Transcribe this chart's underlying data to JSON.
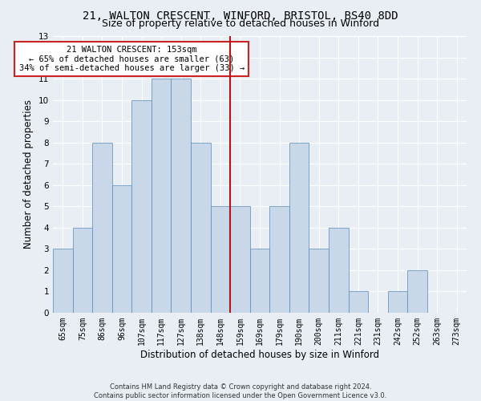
{
  "title_line1": "21, WALTON CRESCENT, WINFORD, BRISTOL, BS40 8DD",
  "title_line2": "Size of property relative to detached houses in Winford",
  "xlabel": "Distribution of detached houses by size in Winford",
  "ylabel": "Number of detached properties",
  "footnote1": "Contains HM Land Registry data © Crown copyright and database right 2024.",
  "footnote2": "Contains public sector information licensed under the Open Government Licence v3.0.",
  "bar_labels": [
    "65sqm",
    "75sqm",
    "86sqm",
    "96sqm",
    "107sqm",
    "117sqm",
    "127sqm",
    "138sqm",
    "148sqm",
    "159sqm",
    "169sqm",
    "179sqm",
    "190sqm",
    "200sqm",
    "211sqm",
    "221sqm",
    "231sqm",
    "242sqm",
    "252sqm",
    "263sqm",
    "273sqm"
  ],
  "bar_values": [
    3,
    4,
    8,
    6,
    10,
    11,
    11,
    8,
    5,
    5,
    3,
    5,
    8,
    3,
    4,
    1,
    0,
    1,
    2,
    0,
    0
  ],
  "bar_color": "#c8d8e8",
  "bar_edgecolor": "#5588bb",
  "vline_index": 8,
  "vline_color": "#bb1111",
  "annotation_text": "21 WALTON CRESCENT: 153sqm\n← 65% of detached houses are smaller (63)\n34% of semi-detached houses are larger (33) →",
  "annotation_box_color": "white",
  "annotation_box_edgecolor": "#cc2222",
  "ylim": [
    0,
    13
  ],
  "yticks": [
    0,
    1,
    2,
    3,
    4,
    5,
    6,
    7,
    8,
    9,
    10,
    11,
    12,
    13
  ],
  "background_color": "#e8eef4",
  "plot_background_color": "#e8eef4",
  "grid_color": "white",
  "title_fontsize": 10,
  "subtitle_fontsize": 9,
  "axis_label_fontsize": 8.5,
  "tick_fontsize": 7,
  "annotation_fontsize": 7.5,
  "footnote_fontsize": 6
}
